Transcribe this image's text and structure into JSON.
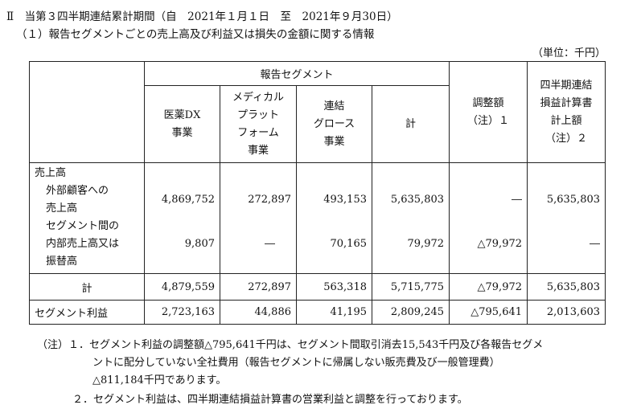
{
  "heading": {
    "period": "Ⅱ　当第３四半期連結累計期間（自　2021年１月１日　至　2021年９月30日）",
    "section": "（１）報告セグメントごとの売上高及び利益又は損失の金額に関する情報",
    "unit": "（単位：千円）"
  },
  "table": {
    "group_header": "報告セグメント",
    "col_headers": {
      "medical_dx": [
        "医薬DX",
        "事業"
      ],
      "medical_platform": [
        "メディカル",
        "プラット",
        "フォーム",
        "事業"
      ],
      "consolidated_growth": [
        "連結",
        "グロース",
        "事業"
      ],
      "total": [
        "計"
      ],
      "adjustment": [
        "調整額",
        "（注）１"
      ],
      "consolidated_pl": [
        "四半期連結",
        "損益計算書",
        "計上額",
        "（注）２"
      ]
    },
    "rows": {
      "sales_heading": "売上高",
      "external": {
        "label": [
          "外部顧客への",
          "売上高"
        ],
        "values": [
          "4,869,752",
          "272,897",
          "493,153",
          "5,635,803",
          "―",
          "5,635,803"
        ]
      },
      "intersegment": {
        "label": [
          "セグメント間の",
          "内部売上高又は",
          "振替高"
        ],
        "values": [
          "9,807",
          "―",
          "70,165",
          "79,972",
          "△79,972",
          "―"
        ]
      },
      "sum": {
        "label": "計",
        "values": [
          "4,879,559",
          "272,897",
          "563,318",
          "5,715,775",
          "△79,972",
          "5,635,803"
        ]
      },
      "profit": {
        "label": "セグメント利益",
        "values": [
          "2,723,163",
          "44,886",
          "41,195",
          "2,809,245",
          "△795,641",
          "2,013,603"
        ]
      }
    }
  },
  "notes": {
    "line1": "（注）１．セグメント利益の調整額△795,641千円は、セグメント間取引消去15,543千円及び各報告セグメ",
    "line2": "ントに配分していない全社費用（報告セグメントに帰属しない販売費及び一般管理費）",
    "line3": "△811,184千円であります。",
    "line4": "２．セグメント利益は、四半期連結損益計算書の営業利益と調整を行っております。"
  }
}
